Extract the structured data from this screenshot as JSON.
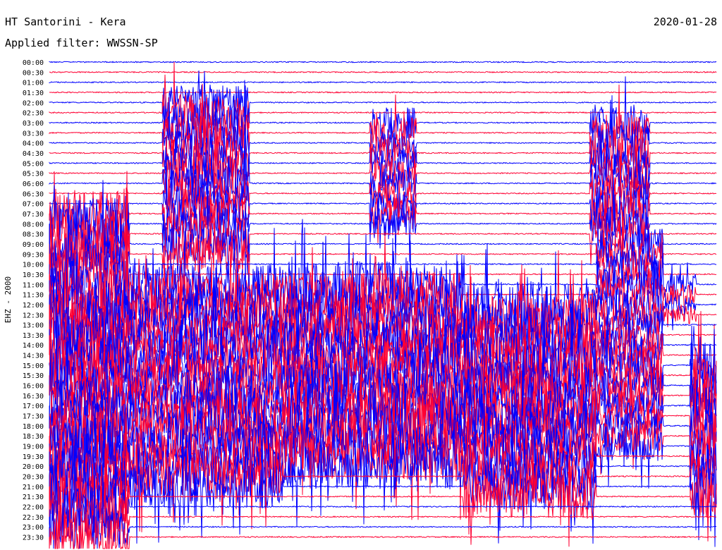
{
  "header": {
    "station": "HT Santorini - Kera",
    "filter": "Applied filter: WWSSN-SP",
    "date": "2020-01-28",
    "channel": "EHZ - 2000"
  },
  "colors": {
    "trace_a": "#0000ff",
    "trace_b": "#ff0033",
    "background": "#ffffff",
    "text": "#000000"
  },
  "chart_data": {
    "type": "line",
    "title": "HT Santorini - Kera",
    "subtitle": "Applied filter: WWSSN-SP",
    "ylabel": "EHZ - 2000",
    "xlabel": "",
    "row_labels": [
      "00:00",
      "00:30",
      "01:00",
      "01:30",
      "02:00",
      "02:30",
      "03:00",
      "03:30",
      "04:00",
      "04:30",
      "05:00",
      "05:30",
      "06:00",
      "06:30",
      "07:00",
      "07:30",
      "08:00",
      "08:30",
      "09:00",
      "09:30",
      "10:00",
      "10:30",
      "11:00",
      "11:30",
      "12:00",
      "12:30",
      "13:00",
      "13:30",
      "14:00",
      "14:30",
      "15:00",
      "15:30",
      "16:00",
      "16:30",
      "17:00",
      "17:30",
      "18:00",
      "18:30",
      "19:00",
      "19:30",
      "20:00",
      "20:30",
      "21:00",
      "21:30",
      "22:00",
      "22:30",
      "23:00",
      "23:30"
    ],
    "row_colors_cycle": [
      "blue",
      "red"
    ],
    "activity": [
      {
        "row_from": "02:00",
        "row_to": "09:30",
        "x_from": 0.17,
        "x_to": 0.3,
        "level": 0.7
      },
      {
        "row_from": "03:00",
        "row_to": "08:00",
        "x_from": 0.48,
        "x_to": 0.55,
        "level": 0.6
      },
      {
        "row_from": "03:00",
        "row_to": "08:30",
        "x_from": 0.81,
        "x_to": 0.9,
        "level": 0.7
      },
      {
        "row_from": "07:30",
        "row_to": "23:30",
        "x_from": 0.0,
        "x_to": 0.12,
        "level": 1.0
      },
      {
        "row_from": "11:00",
        "row_to": "21:00",
        "x_from": 0.12,
        "x_to": 0.35,
        "level": 0.8
      },
      {
        "row_from": "11:00",
        "row_to": "20:00",
        "x_from": 0.35,
        "x_to": 0.62,
        "level": 0.9
      },
      {
        "row_from": "12:00",
        "row_to": "21:30",
        "x_from": 0.62,
        "x_to": 0.82,
        "level": 0.9
      },
      {
        "row_from": "09:00",
        "row_to": "19:00",
        "x_from": 0.82,
        "x_to": 0.92,
        "level": 0.6
      },
      {
        "row_from": "11:00",
        "row_to": "12:30",
        "x_from": 0.9,
        "x_to": 0.97,
        "level": 0.4
      },
      {
        "row_from": "15:00",
        "row_to": "21:30",
        "x_from": 0.96,
        "x_to": 1.0,
        "level": 0.9
      }
    ]
  }
}
